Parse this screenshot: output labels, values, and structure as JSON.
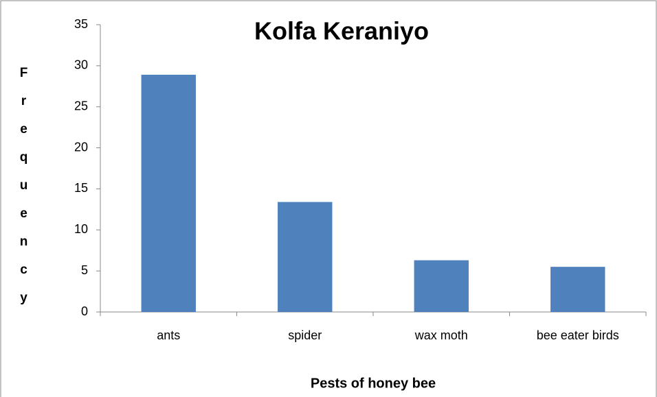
{
  "chart_data": {
    "type": "bar",
    "title": "Kolfa Keraniyo",
    "x_label": "Pests of honey bee",
    "y_label": "Frequency",
    "categories": [
      "ants",
      "spider",
      "wax moth",
      "bee eater birds"
    ],
    "values": [
      28.9,
      13.4,
      6.3,
      5.5
    ],
    "color": "#4f81bd",
    "ylim": [
      0,
      35
    ],
    "yticks": [
      0,
      5,
      10,
      15,
      20,
      25,
      30,
      35
    ],
    "grid": false
  }
}
